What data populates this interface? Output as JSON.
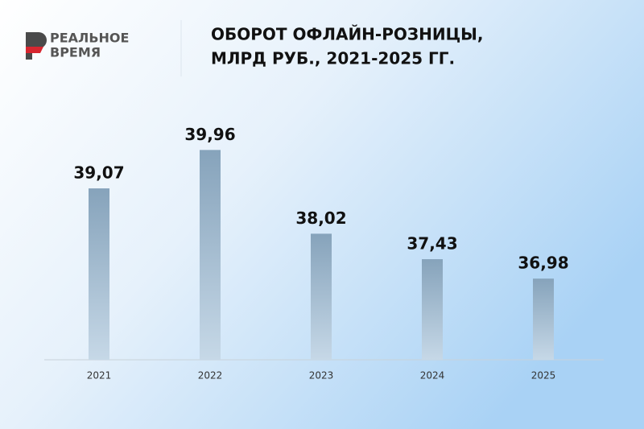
{
  "brand": [
    "РЕАЛЬНОЕ",
    "ВРЕМЯ"
  ],
  "chart_data": {
    "type": "bar",
    "title": [
      "ОБОРОТ ОФЛАЙН-РОЗНИЦЫ,",
      "МЛРД РУБ., 2021-2025 ГГ."
    ],
    "categories": [
      "2021",
      "2022",
      "2023",
      "2024",
      "2025"
    ],
    "values": [
      39.07,
      39.96,
      38.02,
      37.43,
      36.98
    ],
    "value_labels": [
      "39,07",
      "39,96",
      "38,02",
      "37,43",
      "36,98"
    ],
    "color": "#8aa7bf",
    "ylim": [
      35.1,
      40.6
    ]
  }
}
